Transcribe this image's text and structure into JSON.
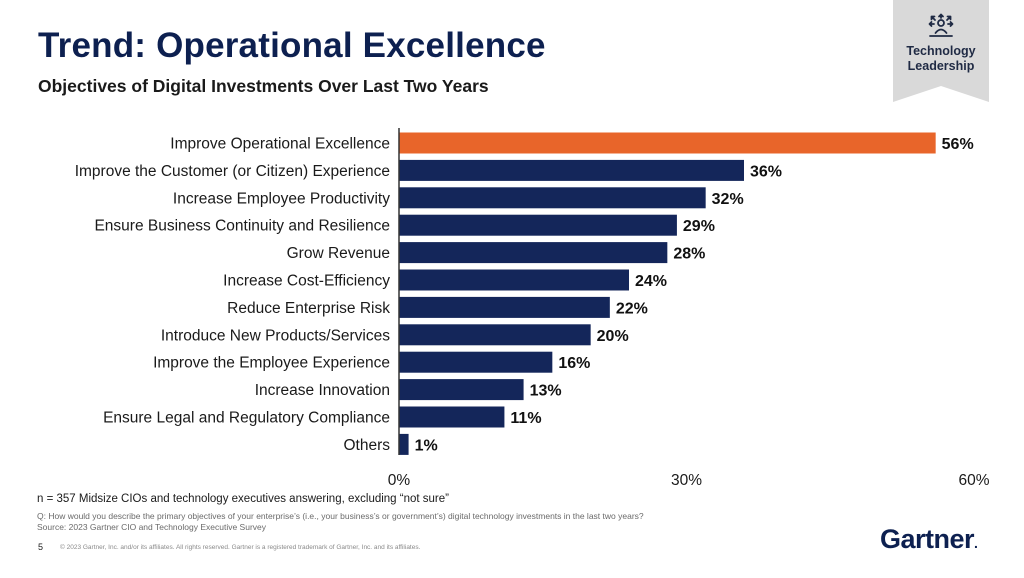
{
  "header": {
    "title": "Trend: Operational Excellence",
    "subtitle": "Objectives of Digital Investments Over Last Two Years"
  },
  "badge": {
    "icon": "people-network-icon",
    "label_line1": "Technology",
    "label_line2": "Leadership"
  },
  "colors": {
    "navy": "#14265a",
    "highlight": "#e8652a",
    "badge_bg": "#d9d9d9",
    "title": "#0d2050"
  },
  "chart_data": {
    "type": "bar",
    "orientation": "horizontal",
    "title": "Objectives of Digital Investments Over Last Two Years",
    "categories": [
      "Improve Operational Excellence",
      "Improve the Customer (or Citizen) Experience",
      "Increase Employee Productivity",
      "Ensure Business Continuity and Resilience",
      "Grow Revenue",
      "Increase Cost-Efficiency",
      "Reduce Enterprise Risk",
      "Introduce New Products/Services",
      "Improve the Employee Experience",
      "Increase Innovation",
      "Ensure Legal and Regulatory Compliance",
      "Others"
    ],
    "values": [
      56,
      36,
      32,
      29,
      28,
      24,
      22,
      20,
      16,
      13,
      11,
      1
    ],
    "value_labels": [
      "56%",
      "36%",
      "32%",
      "29%",
      "28%",
      "24%",
      "22%",
      "20%",
      "16%",
      "13%",
      "11%",
      "1%"
    ],
    "highlight_index": 0,
    "xlim": [
      0,
      60
    ],
    "xticks": [
      0,
      30,
      60
    ],
    "xtick_labels": [
      "0%",
      "30%",
      "60%"
    ],
    "xlabel": "",
    "ylabel": "",
    "grid": false
  },
  "footer": {
    "n_note": "n = 357 Midsize CIOs and technology executives answering, excluding “not sure”",
    "question": "Q: How would you describe the primary objectives of your enterprise’s (i.e., your business’s or government’s) digital technology investments in the last two years?",
    "source": "Source: 2023 Gartner CIO and Technology Executive Survey",
    "page_number": "5",
    "copyright": "© 2023 Gartner, Inc. and/or its affiliates. All rights reserved. Gartner is a registered trademark of Gartner, Inc. and its affiliates.",
    "logo_text": "Gartner",
    "logo_dot": "."
  }
}
